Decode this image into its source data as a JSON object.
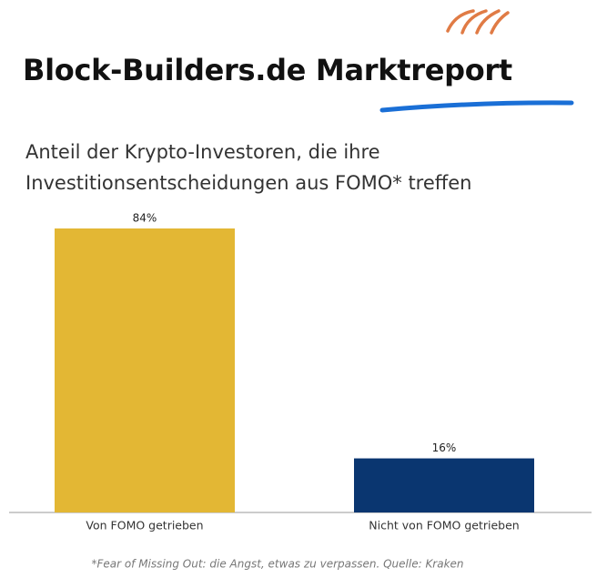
{
  "title": "Block-Builders.de Marktreport",
  "chart_data": {
    "type": "bar",
    "title": "Anteil der Krypto-Investoren, die ihre Investitionsentscheidungen aus FOMO* treffen",
    "categories": [
      "Von FOMO getrieben",
      "Nicht von FOMO getrieben"
    ],
    "values": [
      84,
      16
    ],
    "value_labels": [
      "84%",
      "16%"
    ],
    "colors": [
      "#e3b734",
      "#0a3670"
    ],
    "footnote": "*Fear of Missing Out: die Angst, etwas zu verpassen. Quelle: Kraken"
  }
}
